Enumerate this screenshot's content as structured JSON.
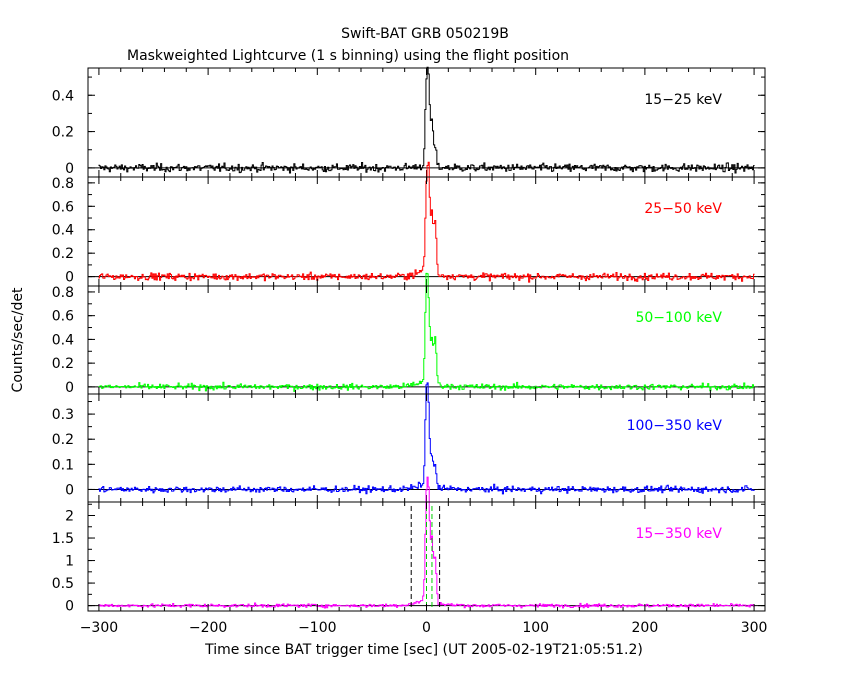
{
  "chart_data": {
    "type": "line",
    "title": "Swift-BAT GRB 050219B",
    "subtitle": "Maskweighted Lightcurve (1 s binning) using the flight position",
    "xlabel": "Time since BAT trigger time [sec] (UT 2005-02-19T21:05:51.2)",
    "ylabel": "Counts/sec/det",
    "xlim": [
      -310,
      310
    ],
    "x_ticks": [
      -300,
      -200,
      -100,
      0,
      100,
      200,
      300
    ],
    "x_tick_labels": [
      "−300",
      "−200",
      "−100",
      "0",
      "100",
      "200",
      "300"
    ],
    "binning_s": 1,
    "panels": [
      {
        "name": "15−25 keV",
        "color": "#000000",
        "ylim": [
          -0.05,
          0.55
        ],
        "y_ticks": [
          0,
          0.2,
          0.4
        ],
        "y_tick_labels": [
          "0",
          "0.2",
          "0.4"
        ],
        "noise_sigma": 0.022,
        "peaks": [
          {
            "t": 0,
            "amp": 0.4
          },
          {
            "t": 2,
            "amp": 0.4
          },
          {
            "t": 5,
            "amp": 0.25
          },
          {
            "t": 8,
            "amp": 0.1
          }
        ],
        "precursor_amp": 0.02
      },
      {
        "name": "25−50 keV",
        "color": "#ff0000",
        "ylim": [
          -0.08,
          0.85
        ],
        "y_ticks": [
          0,
          0.2,
          0.4,
          0.6,
          0.8
        ],
        "y_tick_labels": [
          "0",
          "0.2",
          "0.4",
          "0.6",
          "0.8"
        ],
        "noise_sigma": 0.03,
        "peaks": [
          {
            "t": 0,
            "amp": 0.6
          },
          {
            "t": 2,
            "amp": 0.78
          },
          {
            "t": 5,
            "amp": 0.5
          },
          {
            "t": 8,
            "amp": 0.45
          }
        ],
        "precursor_amp": 0.08
      },
      {
        "name": "50−100 keV",
        "color": "#00ff00",
        "ylim": [
          -0.06,
          0.85
        ],
        "y_ticks": [
          0,
          0.2,
          0.4,
          0.6,
          0.8
        ],
        "y_tick_labels": [
          "0",
          "0.2",
          "0.4",
          "0.6",
          "0.8"
        ],
        "noise_sigma": 0.025,
        "peaks": [
          {
            "t": 0,
            "amp": 0.82
          },
          {
            "t": 2,
            "amp": 0.55
          },
          {
            "t": 5,
            "amp": 0.35
          },
          {
            "t": 8,
            "amp": 0.4
          }
        ],
        "precursor_amp": 0.07
      },
      {
        "name": "100−350 keV",
        "color": "#0000ff",
        "ylim": [
          -0.05,
          0.38
        ],
        "y_ticks": [
          0,
          0.1,
          0.2,
          0.3
        ],
        "y_tick_labels": [
          "0",
          "0.1",
          "0.2",
          "0.3"
        ],
        "noise_sigma": 0.013,
        "peaks": [
          {
            "t": 0,
            "amp": 0.35
          },
          {
            "t": 2,
            "amp": 0.25
          },
          {
            "t": 5,
            "amp": 0.12
          },
          {
            "t": 8,
            "amp": 0.08
          }
        ],
        "precursor_amp": 0.03
      },
      {
        "name": "15−350 keV",
        "color": "#ff00ff",
        "ylim": [
          -0.12,
          2.3
        ],
        "y_ticks": [
          0,
          0.5,
          1,
          1.5,
          2
        ],
        "y_tick_labels": [
          "0",
          "0.5",
          "1",
          "1.5",
          "2"
        ],
        "noise_sigma": 0.04,
        "peaks": [
          {
            "t": 0,
            "amp": 2.0
          },
          {
            "t": 2,
            "amp": 2.1
          },
          {
            "t": 5,
            "amp": 1.4
          },
          {
            "t": 8,
            "amp": 1.0
          }
        ],
        "precursor_amp": 0.2,
        "t90_lines": [
          -14,
          12
        ],
        "t50_lines": [
          0,
          5
        ]
      }
    ]
  }
}
